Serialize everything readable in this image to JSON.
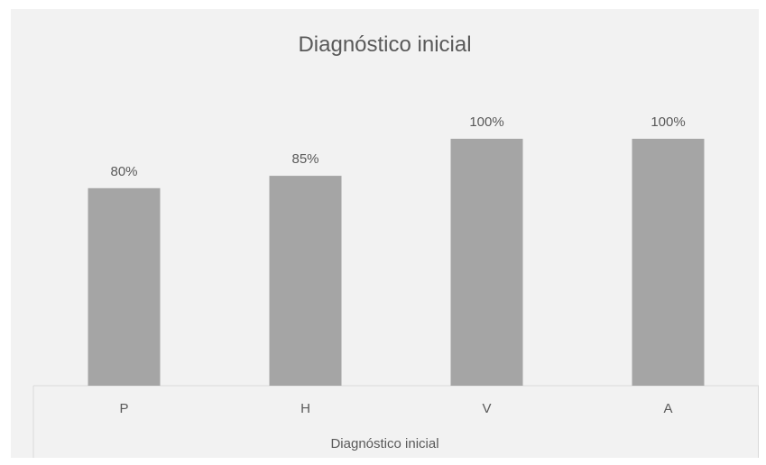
{
  "chart_data": {
    "type": "bar",
    "title": "Diagnóstico inicial",
    "categories": [
      "P",
      "H",
      "V",
      "A"
    ],
    "values": [
      80,
      85,
      100,
      100
    ],
    "data_labels": [
      "80%",
      "85%",
      "100%",
      "100%"
    ],
    "xlabel": "Diagnóstico inicial",
    "ylabel": "",
    "ylim": [
      0,
      100
    ],
    "grid": false,
    "legend": "none",
    "bar_color": "#a5a5a5",
    "background_color": "#f2f2f2"
  }
}
